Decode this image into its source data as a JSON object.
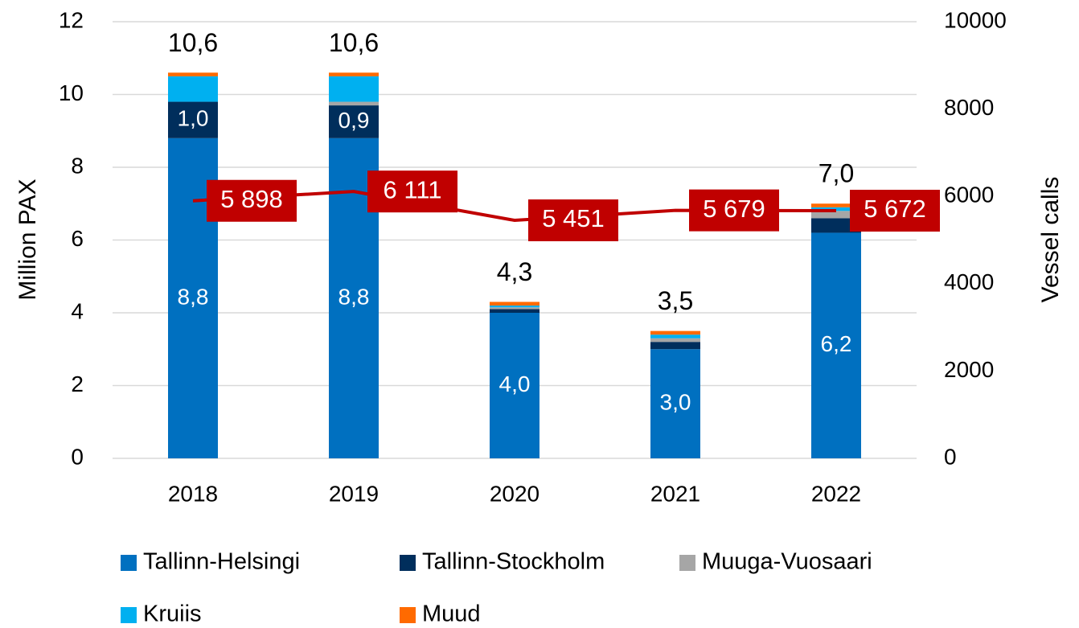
{
  "chart_data": {
    "type": "bar",
    "stacked": true,
    "ylabel": "Million PAX",
    "y2label": "Vessel calls",
    "categories": [
      "2018",
      "2019",
      "2020",
      "2021",
      "2022"
    ],
    "ylim": [
      0,
      12
    ],
    "yticks": [
      0,
      2,
      4,
      6,
      8,
      10,
      12
    ],
    "y2lim": [
      0,
      10000
    ],
    "y2ticks": [
      0,
      2000,
      4000,
      6000,
      8000,
      10000
    ],
    "grid": true,
    "legend": "bottom",
    "series": [
      {
        "name": "Tallinn-Helsingi",
        "color": "#0070c0",
        "values": [
          8.8,
          8.8,
          4.0,
          3.0,
          6.2
        ],
        "value_labels": [
          "8,8",
          "8,8",
          "4,0",
          "3,0",
          "6,2"
        ]
      },
      {
        "name": "Tallinn-Stockholm",
        "color": "#002e5c",
        "values": [
          1.0,
          0.9,
          0.1,
          0.2,
          0.4
        ],
        "value_labels": [
          "1,0",
          "0,9",
          null,
          null,
          null
        ]
      },
      {
        "name": "Muuga-Vuosaari",
        "color": "#a6a6a6",
        "values": [
          0,
          0.1,
          0.05,
          0.1,
          0.2
        ]
      },
      {
        "name": "Kruiis",
        "color": "#00b0f0",
        "values": [
          0.7,
          0.7,
          0.05,
          0.1,
          0.1
        ]
      },
      {
        "name": "Muud",
        "color": "#ff6a00",
        "values": [
          0.1,
          0.1,
          0.1,
          0.1,
          0.1
        ]
      }
    ],
    "totals": [
      10.6,
      10.6,
      4.3,
      3.5,
      7.0
    ],
    "totals_labels": [
      "10,6",
      "10,6",
      "4,3",
      "3,5",
      "7,0"
    ],
    "line_series": {
      "type": "line",
      "axis": "y2",
      "color": "#c00000",
      "values": [
        5898,
        6111,
        5451,
        5679,
        5672
      ],
      "value_labels": [
        "5 898",
        "6 111",
        "5 451",
        "5 679",
        "5 672"
      ]
    }
  }
}
